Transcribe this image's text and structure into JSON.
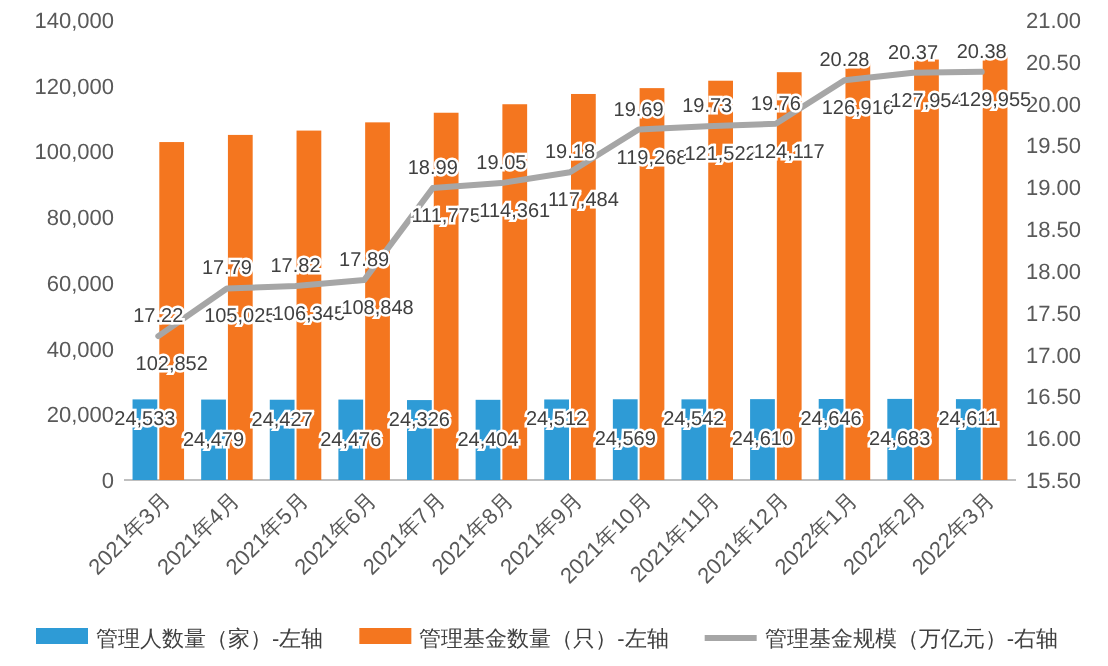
{
  "chart_data": {
    "type": "bar",
    "categories": [
      "2021年3月",
      "2021年4月",
      "2021年5月",
      "2021年6月",
      "2021年7月",
      "2021年8月",
      "2021年9月",
      "2021年10月",
      "2021年11月",
      "2021年12月",
      "2022年1月",
      "2022年2月",
      "2022年3月"
    ],
    "series": [
      {
        "name": "管理人数量（家）-左轴",
        "color": "#2e9bd6",
        "values": [
          24533,
          24479,
          24427,
          24476,
          24326,
          24404,
          24512,
          24569,
          24542,
          24610,
          24646,
          24683,
          24611
        ],
        "value_labels": [
          "24,533",
          "24,479",
          "24,427",
          "24,476",
          "24,326",
          "24,404",
          "24,512",
          "24,569",
          "24,542",
          "24,610",
          "24,646",
          "24,683",
          "24,611"
        ]
      },
      {
        "name": "管理基金数量（只）-左轴",
        "color": "#f4761f",
        "values": [
          102852,
          105025,
          106345,
          108848,
          111775,
          114361,
          117484,
          119268,
          121522,
          124117,
          126916,
          127954,
          129955
        ],
        "value_labels": [
          "102,852",
          "105,025",
          "106,345",
          "108,848",
          "111,775",
          "114,361",
          "117,484",
          "119,268",
          "121,522",
          "124,117",
          "126,916",
          "127,954",
          "129,955"
        ]
      },
      {
        "name": "管理基金规模（万亿元）-右轴",
        "type": "line",
        "axis": "y2",
        "color": "#a6a6a6",
        "values": [
          17.22,
          17.79,
          17.82,
          17.89,
          18.99,
          19.05,
          19.18,
          19.69,
          19.73,
          19.76,
          20.28,
          20.37,
          20.38
        ]
      }
    ],
    "ylim": [
      0,
      140000
    ],
    "yticks": [
      0,
      {
        "value": 20000,
        "label": "20,000"
      },
      {
        "value": 40000,
        "label": "40,000"
      },
      {
        "value": 60000,
        "label": "60,000"
      },
      {
        "value": 80000,
        "label": "80,000"
      },
      {
        "value": 100000,
        "label": "100,000"
      },
      {
        "value": 120000,
        "label": "120,000"
      },
      {
        "value": 140000,
        "label": "140,000"
      }
    ],
    "y2lim": [
      15.5,
      21
    ],
    "y2ticks": [
      {
        "value": 15.5,
        "label": "15.50"
      },
      {
        "value": 16,
        "label": "16.00"
      },
      {
        "value": 16.5,
        "label": "16.50"
      },
      {
        "value": 17,
        "label": "17.00"
      },
      {
        "value": 17.5,
        "label": "17.50"
      },
      {
        "value": 18,
        "label": "18.00"
      },
      {
        "value": 18.5,
        "label": "18.50"
      },
      {
        "value": 19,
        "label": "19.00"
      },
      {
        "value": 19.5,
        "label": "19.50"
      },
      {
        "value": 20,
        "label": "20.00"
      },
      {
        "value": 20.5,
        "label": "20.50"
      },
      {
        "value": 21,
        "label": "21.00"
      }
    ],
    "data_labels": true,
    "legend": "bottom",
    "grid": false
  }
}
